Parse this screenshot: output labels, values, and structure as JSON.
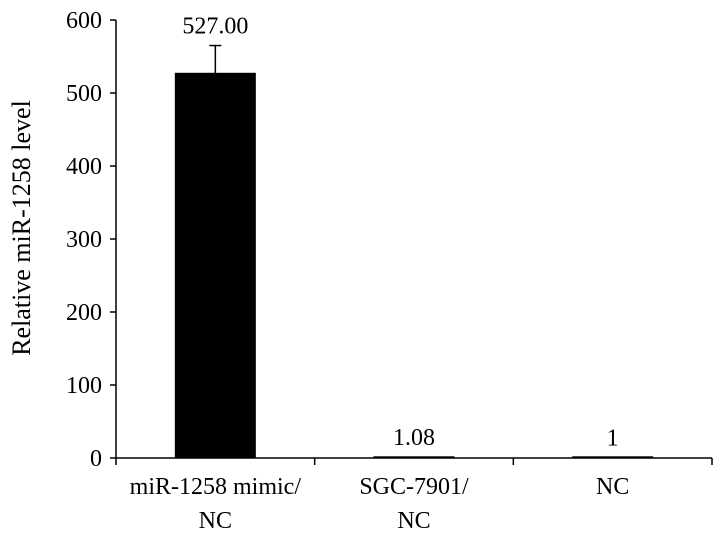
{
  "chart_data": {
    "type": "bar",
    "categories": [
      [
        "miR-1258 mimic/",
        "NC"
      ],
      [
        "SGC-7901/",
        "NC"
      ],
      [
        "NC"
      ]
    ],
    "values": [
      527.0,
      1.08,
      1
    ],
    "error_bars": [
      38,
      0,
      0
    ],
    "data_labels": [
      "527.00",
      "1.08",
      "1"
    ],
    "title": "",
    "xlabel": "",
    "ylabel": "Relative miR-1258 level",
    "ylim": [
      0,
      600
    ],
    "yticks": [
      0,
      100,
      200,
      300,
      400,
      500,
      600
    ],
    "grid": false,
    "bar_color": "#000000"
  }
}
